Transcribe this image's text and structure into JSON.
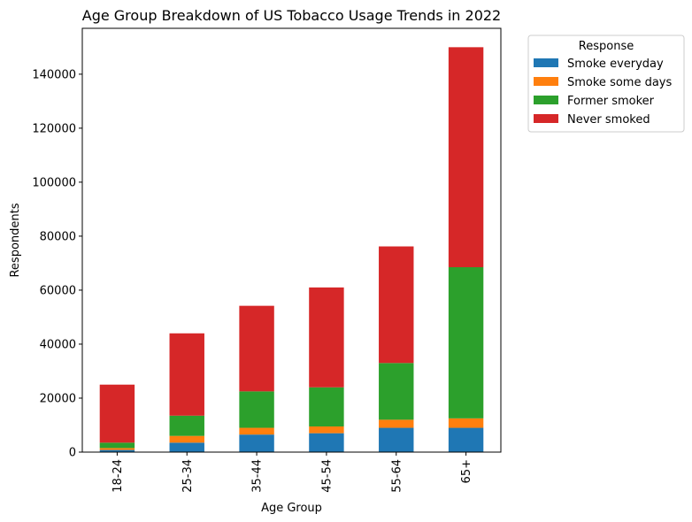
{
  "chart_data": {
    "type": "bar",
    "stacked": true,
    "title": "Age Group Breakdown of US Tobacco Usage Trends in 2022",
    "xlabel": "Age Group",
    "ylabel": "Respondents",
    "categories": [
      "18-24",
      "25-34",
      "35-44",
      "45-54",
      "55-64",
      "65+"
    ],
    "series": [
      {
        "name": "Smoke everyday",
        "color": "#1f77b4",
        "values": [
          800,
          3500,
          6500,
          7000,
          9000,
          9000
        ]
      },
      {
        "name": "Smoke some days",
        "color": "#ff7f0e",
        "values": [
          700,
          2500,
          2500,
          2500,
          3000,
          3500
        ]
      },
      {
        "name": "Former smoker",
        "color": "#2ca02c",
        "values": [
          2000,
          7500,
          13500,
          14500,
          21000,
          56000
        ]
      },
      {
        "name": "Never smoked",
        "color": "#d62728",
        "values": [
          21500,
          30500,
          31700,
          37000,
          43200,
          81500
        ]
      }
    ],
    "ylim": [
      0,
      157000
    ],
    "yticks": [
      0,
      20000,
      40000,
      60000,
      80000,
      100000,
      120000,
      140000
    ],
    "ytick_labels": [
      "0",
      "20000",
      "40000",
      "60000",
      "80000",
      "100000",
      "120000",
      "140000"
    ],
    "grid": false,
    "legend": {
      "title": "Response",
      "placement": "outside upper-right"
    }
  }
}
